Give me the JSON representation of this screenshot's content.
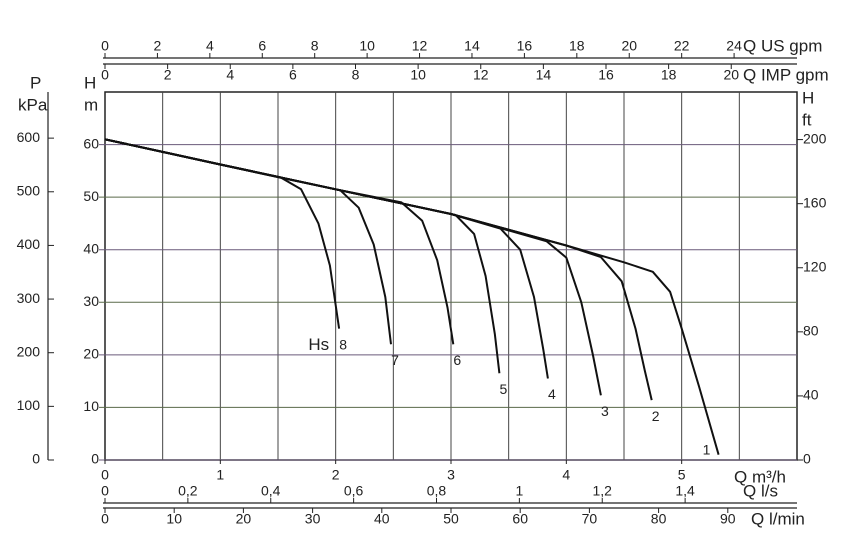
{
  "chart_data": {
    "type": "line",
    "x_label": "Q m³/h",
    "xlim": [
      0,
      6
    ],
    "xticks": [
      0,
      1,
      2,
      3,
      4,
      5
    ],
    "xgrid": [
      0.5,
      1,
      1.5,
      2,
      2.5,
      3,
      3.5,
      4,
      4.5,
      5,
      5.5
    ],
    "y_label": "H",
    "y_unit": "m",
    "ylim": [
      0,
      70
    ],
    "yticks": [
      0,
      10,
      20,
      30,
      40,
      50,
      60
    ],
    "grid": true,
    "annotation": "Hs",
    "extra_axes": [
      {
        "label": "Q US gpm",
        "side": "top",
        "lim": [
          0,
          26.4
        ],
        "ticks": [
          0,
          2,
          4,
          6,
          8,
          10,
          12,
          14,
          16,
          18,
          20,
          22,
          24
        ]
      },
      {
        "label": "Q IMP gpm",
        "side": "top",
        "lim": [
          0,
          22.1
        ],
        "ticks": [
          0,
          2,
          4,
          6,
          8,
          10,
          12,
          14,
          16,
          18,
          20
        ]
      },
      {
        "label": "Q l/s",
        "side": "bottom",
        "lim": [
          0,
          1.67
        ],
        "ticks": [
          0,
          {
            "value": 0.2,
            "label": "0,2"
          },
          {
            "value": 0.4,
            "label": "0,4"
          },
          {
            "value": 0.6,
            "label": "0,6"
          },
          {
            "value": 0.8,
            "label": "0,8"
          },
          1,
          {
            "value": 1.2,
            "label": "1,2"
          },
          {
            "value": 1.4,
            "label": "1,4"
          }
        ]
      },
      {
        "label": "Q l/min",
        "side": "bottom",
        "lim": [
          0,
          100
        ],
        "ticks": [
          0,
          10,
          20,
          30,
          40,
          50,
          60,
          70,
          80,
          90
        ]
      },
      {
        "label": "P",
        "unit": "kPa",
        "side": "left",
        "lim": [
          0,
          686
        ],
        "ticks": [
          0,
          100,
          200,
          300,
          400,
          500,
          600
        ]
      },
      {
        "label": "H",
        "unit": "ft",
        "side": "right",
        "lim": [
          0,
          229.7
        ],
        "ticks": [
          0,
          40,
          80,
          120,
          160,
          200
        ]
      }
    ],
    "series": [
      {
        "name": "1",
        "color": "#111111",
        "x": [
          0,
          1,
          2,
          3,
          4,
          4.5,
          4.75,
          4.9,
          5.0,
          5.15,
          5.32
        ],
        "values": [
          61,
          56.2,
          51.5,
          46.8,
          40.8,
          37.6,
          35.8,
          32,
          25,
          14,
          1
        ]
      },
      {
        "name": "2",
        "color": "#111111",
        "x": [
          0,
          1,
          2,
          3,
          4,
          4.3,
          4.48,
          4.6,
          4.68,
          4.74
        ],
        "values": [
          61,
          56.2,
          51.5,
          46.8,
          40.8,
          38.6,
          34,
          25,
          17,
          11.4
        ]
      },
      {
        "name": "3",
        "color": "#111111",
        "x": [
          0,
          1,
          2,
          3,
          3.83,
          4.0,
          4.13,
          4.23,
          4.3
        ],
        "values": [
          61,
          56.2,
          51.5,
          46.8,
          41.6,
          38.5,
          30,
          20,
          12.3
        ]
      },
      {
        "name": "4",
        "color": "#111111",
        "x": [
          0,
          1,
          2,
          3,
          3.43,
          3.6,
          3.72,
          3.8,
          3.84
        ],
        "values": [
          61,
          56.2,
          51.5,
          46.8,
          44,
          40,
          31,
          21,
          15.5
        ]
      },
      {
        "name": "5",
        "color": "#111111",
        "x": [
          0,
          1,
          2,
          3.04,
          3.2,
          3.3,
          3.38,
          3.42
        ],
        "values": [
          61,
          56.2,
          51.5,
          46.6,
          43,
          35,
          24,
          16.5
        ]
      },
      {
        "name": "6",
        "color": "#111111",
        "x": [
          0,
          1,
          2,
          2.57,
          2.75,
          2.88,
          2.97,
          3.02
        ],
        "values": [
          61,
          56.2,
          51.5,
          49,
          45.5,
          38,
          29,
          22
        ]
      },
      {
        "name": "7",
        "color": "#111111",
        "x": [
          0,
          0.5,
          1,
          1.5,
          2.04,
          2.2,
          2.33,
          2.43,
          2.48
        ],
        "values": [
          61,
          58.6,
          56.2,
          53.8,
          51.3,
          48,
          41,
          31,
          22
        ]
      },
      {
        "name": "8",
        "color": "#111111",
        "x": [
          0,
          0.5,
          1,
          1.52,
          1.7,
          1.85,
          1.95,
          2.03
        ],
        "values": [
          61,
          58.6,
          56.2,
          53.8,
          51.5,
          45,
          37,
          25
        ]
      }
    ]
  }
}
